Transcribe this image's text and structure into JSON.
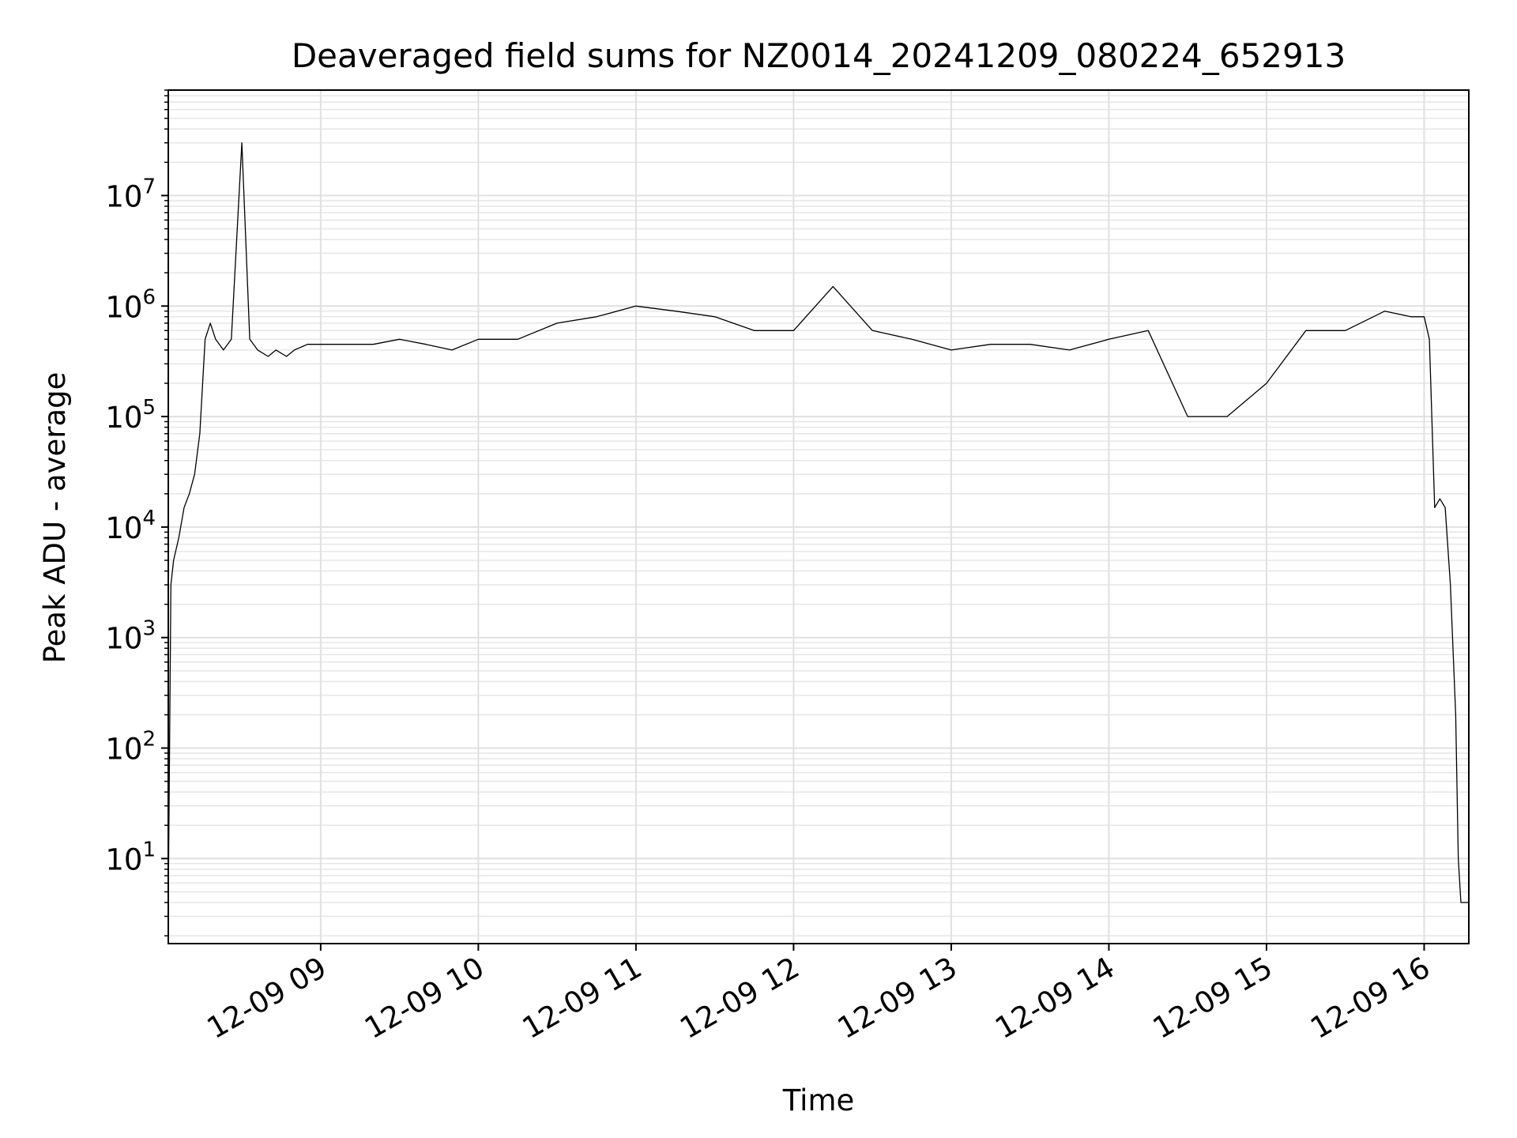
{
  "chart_data": {
    "type": "line",
    "title": "Deaveraged field sums for NZ0014_20241209_080224_652913",
    "xlabel": "Time",
    "ylabel": "Peak ADU - average",
    "yscale": "log",
    "ylim": [
      1.7,
      90000000
    ],
    "xlim": [
      "2024-12-09 08:02",
      "2024-12-09 16:17"
    ],
    "grid": "both (major and minor), light gray",
    "line_color": "#000000",
    "x_tick_labels": [
      "12-09 09",
      "12-09 10",
      "12-09 11",
      "12-09 12",
      "12-09 13",
      "12-09 14",
      "12-09 15",
      "12-09 16"
    ],
    "x_tick_values": [
      "2024-12-09 09:00",
      "2024-12-09 10:00",
      "2024-12-09 11:00",
      "2024-12-09 12:00",
      "2024-12-09 13:00",
      "2024-12-09 14:00",
      "2024-12-09 15:00",
      "2024-12-09 16:00"
    ],
    "y_ticks": [
      {
        "value": 10,
        "base": "10",
        "exp": "1"
      },
      {
        "value": 100,
        "base": "10",
        "exp": "2"
      },
      {
        "value": 1000,
        "base": "10",
        "exp": "3"
      },
      {
        "value": 10000,
        "base": "10",
        "exp": "4"
      },
      {
        "value": 100000,
        "base": "10",
        "exp": "5"
      },
      {
        "value": 1000000,
        "base": "10",
        "exp": "6"
      },
      {
        "value": 10000000,
        "base": "10",
        "exp": "7"
      }
    ],
    "series": [
      {
        "x": [
          "2024-12-09 08:02",
          "2024-12-09 08:03",
          "2024-12-09 08:04",
          "2024-12-09 08:06",
          "2024-12-09 08:08",
          "2024-12-09 08:10",
          "2024-12-09 08:12",
          "2024-12-09 08:14",
          "2024-12-09 08:16",
          "2024-12-09 08:18",
          "2024-12-09 08:20",
          "2024-12-09 08:23",
          "2024-12-09 08:26",
          "2024-12-09 08:30",
          "2024-12-09 08:33",
          "2024-12-09 08:36",
          "2024-12-09 08:40",
          "2024-12-09 08:43",
          "2024-12-09 08:47",
          "2024-12-09 08:50",
          "2024-12-09 08:55",
          "2024-12-09 09:00",
          "2024-12-09 09:10",
          "2024-12-09 09:20",
          "2024-12-09 09:30",
          "2024-12-09 09:40",
          "2024-12-09 09:50",
          "2024-12-09 10:00",
          "2024-12-09 10:15",
          "2024-12-09 10:30",
          "2024-12-09 10:45",
          "2024-12-09 11:00",
          "2024-12-09 11:15",
          "2024-12-09 11:30",
          "2024-12-09 11:45",
          "2024-12-09 12:00",
          "2024-12-09 12:15",
          "2024-12-09 12:30",
          "2024-12-09 12:45",
          "2024-12-09 13:00",
          "2024-12-09 13:15",
          "2024-12-09 13:30",
          "2024-12-09 13:45",
          "2024-12-09 14:00",
          "2024-12-09 14:15",
          "2024-12-09 14:30",
          "2024-12-09 14:45",
          "2024-12-09 15:00",
          "2024-12-09 15:15",
          "2024-12-09 15:30",
          "2024-12-09 15:45",
          "2024-12-09 15:55",
          "2024-12-09 16:00",
          "2024-12-09 16:02",
          "2024-12-09 16:04",
          "2024-12-09 16:06",
          "2024-12-09 16:08",
          "2024-12-09 16:10",
          "2024-12-09 16:12",
          "2024-12-09 16:13",
          "2024-12-09 16:14",
          "2024-12-09 16:15",
          "2024-12-09 16:17"
        ],
        "values": [
          4,
          3000,
          5000,
          8000,
          15000,
          20000,
          30000,
          70000,
          500000,
          700000,
          500000,
          400000,
          500000,
          30000000,
          500000,
          400000,
          350000,
          400000,
          350000,
          400000,
          450000,
          450000,
          450000,
          450000,
          500000,
          450000,
          400000,
          500000,
          500000,
          700000,
          800000,
          1000000,
          900000,
          800000,
          600000,
          600000,
          1500000,
          600000,
          500000,
          400000,
          450000,
          450000,
          400000,
          500000,
          600000,
          100000,
          100000,
          200000,
          600000,
          600000,
          900000,
          800000,
          800000,
          500000,
          15000,
          18000,
          15000,
          3000,
          200,
          10,
          4,
          4,
          4
        ]
      }
    ]
  }
}
